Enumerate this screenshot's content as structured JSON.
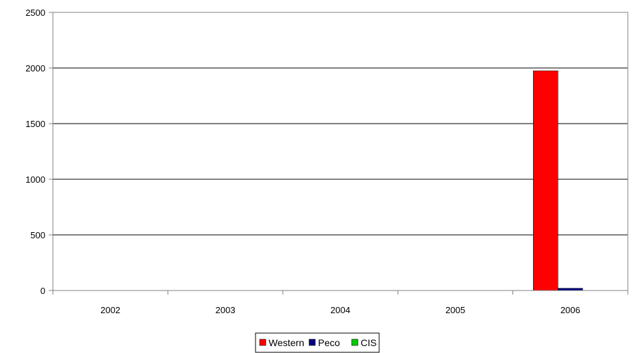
{
  "chart_data": {
    "type": "bar",
    "title": "",
    "xlabel": "",
    "ylabel": "",
    "categories": [
      "2002",
      "2003",
      "2004",
      "2005",
      "2006"
    ],
    "series": [
      {
        "name": "Western",
        "color": "#ff0000",
        "values": [
          0,
          0,
          0,
          0,
          1975
        ]
      },
      {
        "name": "Peco",
        "color": "#000080",
        "values": [
          0,
          0,
          0,
          0,
          20
        ]
      },
      {
        "name": "CIS",
        "color": "#00cc00",
        "values": [
          0,
          0,
          0,
          0,
          0
        ]
      }
    ],
    "ylim": [
      0,
      2500
    ],
    "yticks": [
      0,
      500,
      1000,
      1500,
      2000,
      2500
    ],
    "grid": true,
    "legend_position": "bottom"
  }
}
